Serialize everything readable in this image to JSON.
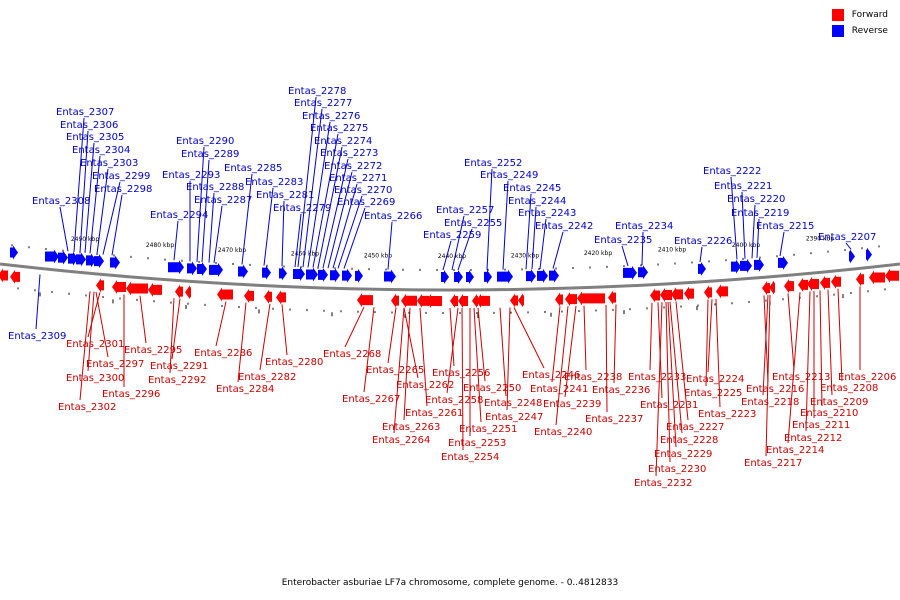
{
  "legend": {
    "forward_label": "Forward",
    "reverse_label": "Reverse",
    "forward_color": "#ff0000",
    "reverse_color": "#0000ff"
  },
  "caption": "Enterobacter asburiae LF7a chromosome, complete genome. - 0..4812833",
  "colors": {
    "forward": "#ff0000",
    "forward_dark": "#cc0000",
    "reverse": "#0000ff",
    "reverse_dark": "#0000cc",
    "backbone": "#808080"
  },
  "scale_ticks": [
    "2490 kbp",
    "2480 kbp",
    "2470 kbp",
    "2460 kbp",
    "2450 kbp",
    "2440 kbp",
    "2430 kbp",
    "2420 kbp",
    "2410 kbp",
    "2400 kbp",
    "2390 kbp"
  ],
  "reverse_genes": [
    "Entas_2308",
    "Entas_2307",
    "Entas_2306",
    "Entas_2305",
    "Entas_2304",
    "Entas_2303",
    "Entas_2299",
    "Entas_2298",
    "Entas_2294",
    "Entas_2293",
    "Entas_2290",
    "Entas_2289",
    "Entas_2288",
    "Entas_2287",
    "Entas_2285",
    "Entas_2283",
    "Entas_2281",
    "Entas_2279",
    "Entas_2278",
    "Entas_2277",
    "Entas_2276",
    "Entas_2275",
    "Entas_2274",
    "Entas_2273",
    "Entas_2272",
    "Entas_2271",
    "Entas_2270",
    "Entas_2269",
    "Entas_2266",
    "Entas_2259",
    "Entas_2257",
    "Entas_2255",
    "Entas_2252",
    "Entas_2249",
    "Entas_2245",
    "Entas_2244",
    "Entas_2243",
    "Entas_2242",
    "Entas_2235",
    "Entas_2234",
    "Entas_2226",
    "Entas_2222",
    "Entas_2221",
    "Entas_2220",
    "Entas_2219",
    "Entas_2215",
    "Entas_2207",
    "Entas_2309"
  ],
  "forward_genes": [
    "Entas_2301",
    "Entas_2297",
    "Entas_2300",
    "Entas_2302",
    "Entas_2296",
    "Entas_2295",
    "Entas_2291",
    "Entas_2292",
    "Entas_2286",
    "Entas_2284",
    "Entas_2282",
    "Entas_2280",
    "Entas_2268",
    "Entas_2267",
    "Entas_2265",
    "Entas_2262",
    "Entas_2261",
    "Entas_2263",
    "Entas_2264",
    "Entas_2256",
    "Entas_2258",
    "Entas_2250",
    "Entas_2251",
    "Entas_2253",
    "Entas_2254",
    "Entas_2248",
    "Entas_2247",
    "Entas_2246",
    "Entas_2241",
    "Entas_2240",
    "Entas_2239",
    "Entas_2238",
    "Entas_2237",
    "Entas_2236",
    "Entas_2233",
    "Entas_2231",
    "Entas_2227",
    "Entas_2228",
    "Entas_2229",
    "Entas_2230",
    "Entas_2232",
    "Entas_2224",
    "Entas_2225",
    "Entas_2223",
    "Entas_2216",
    "Entas_2218",
    "Entas_2217",
    "Entas_2213",
    "Entas_2214",
    "Entas_2212",
    "Entas_2211",
    "Entas_2210",
    "Entas_2209",
    "Entas_2208",
    "Entas_2206"
  ]
}
